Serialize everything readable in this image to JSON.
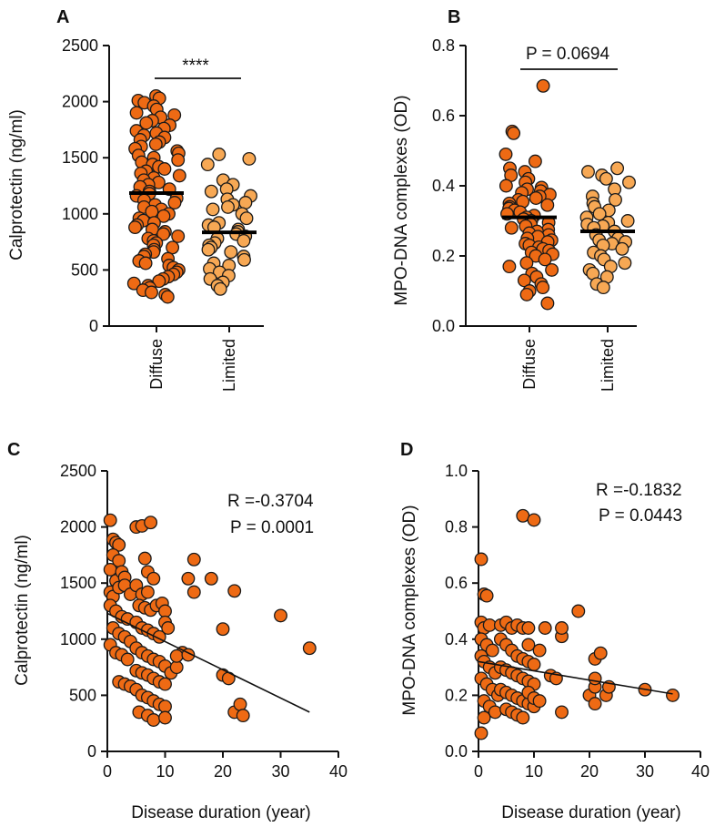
{
  "colors": {
    "diffuse": "#EE6A14",
    "limited": "#F7A854",
    "scatter": "#EE6A14",
    "line": "#111111"
  },
  "chart_data": [
    {
      "panel": "A",
      "type": "scatter",
      "ylabel": "Calprotectin (ng/ml)",
      "ylim": [
        0,
        2500
      ],
      "yticks": [
        0,
        500,
        1000,
        1500,
        2000,
        2500
      ],
      "yticks_text": [
        "0",
        "500",
        "1000",
        "1500",
        "2000",
        "2500"
      ],
      "categories": [
        "Diffuse",
        "Limited"
      ],
      "significance": "****",
      "series": [
        {
          "name": "Diffuse",
          "mean": 1185,
          "values": [
            2050,
            2030,
            2010,
            1990,
            1960,
            1930,
            1900,
            1880,
            1860,
            1830,
            1810,
            1790,
            1760,
            1740,
            1720,
            1700,
            1680,
            1660,
            1640,
            1620,
            1600,
            1580,
            1560,
            1540,
            1520,
            1500,
            1480,
            1460,
            1440,
            1420,
            1400,
            1380,
            1360,
            1340,
            1320,
            1300,
            1280,
            1260,
            1240,
            1220,
            1200,
            1180,
            1160,
            1140,
            1120,
            1100,
            1080,
            1060,
            1040,
            1020,
            1000,
            980,
            960,
            940,
            920,
            900,
            880,
            860,
            840,
            820,
            800,
            780,
            760,
            740,
            720,
            700,
            680,
            660,
            640,
            620,
            600,
            580,
            560,
            540,
            520,
            500,
            480,
            460,
            440,
            420,
            400,
            380,
            360,
            340,
            320,
            300,
            280,
            260
          ]
        },
        {
          "name": "Limited",
          "mean": 835,
          "values": [
            1530,
            1490,
            1440,
            1300,
            1260,
            1220,
            1200,
            1160,
            1130,
            1100,
            1080,
            1060,
            1040,
            1000,
            960,
            920,
            900,
            880,
            860,
            840,
            820,
            800,
            780,
            760,
            740,
            720,
            700,
            680,
            660,
            620,
            590,
            560,
            540,
            510,
            480,
            450,
            420,
            390,
            360,
            330
          ]
        }
      ]
    },
    {
      "panel": "B",
      "type": "scatter",
      "ylabel": "MPO-DNA complexes (OD)",
      "ylim": [
        0,
        0.8
      ],
      "yticks": [
        0,
        0.2,
        0.4,
        0.6,
        0.8
      ],
      "yticks_text": [
        "0.0",
        "0.2",
        "0.4",
        "0.6",
        "0.8"
      ],
      "categories": [
        "Diffuse",
        "Limited"
      ],
      "significance": "P = 0.0694",
      "series": [
        {
          "name": "Diffuse",
          "mean": 0.31,
          "values": [
            0.685,
            0.555,
            0.55,
            0.49,
            0.47,
            0.45,
            0.44,
            0.43,
            0.42,
            0.41,
            0.4,
            0.395,
            0.39,
            0.385,
            0.38,
            0.375,
            0.37,
            0.365,
            0.36,
            0.355,
            0.35,
            0.345,
            0.34,
            0.335,
            0.33,
            0.325,
            0.32,
            0.315,
            0.31,
            0.305,
            0.3,
            0.295,
            0.29,
            0.285,
            0.28,
            0.275,
            0.27,
            0.265,
            0.26,
            0.255,
            0.25,
            0.245,
            0.24,
            0.235,
            0.23,
            0.225,
            0.22,
            0.215,
            0.21,
            0.205,
            0.2,
            0.19,
            0.18,
            0.17,
            0.16,
            0.15,
            0.14,
            0.13,
            0.12,
            0.11,
            0.1,
            0.09,
            0.065
          ]
        },
        {
          "name": "Limited",
          "mean": 0.27,
          "values": [
            0.45,
            0.44,
            0.43,
            0.42,
            0.41,
            0.39,
            0.37,
            0.36,
            0.35,
            0.34,
            0.33,
            0.32,
            0.31,
            0.3,
            0.295,
            0.29,
            0.285,
            0.28,
            0.27,
            0.26,
            0.25,
            0.245,
            0.24,
            0.235,
            0.23,
            0.22,
            0.21,
            0.2,
            0.19,
            0.18,
            0.17,
            0.16,
            0.15,
            0.14,
            0.12,
            0.11
          ]
        }
      ]
    },
    {
      "panel": "C",
      "type": "scatter",
      "xlabel": "Disease duration (year)",
      "ylabel": "Calprotectin (ng/ml)",
      "xlim": [
        0,
        40
      ],
      "ylim": [
        0,
        2500
      ],
      "xticks": [
        0,
        10,
        20,
        30,
        40
      ],
      "xticks_text": [
        "0",
        "10",
        "20",
        "30",
        "40"
      ],
      "yticks": [
        0,
        500,
        1000,
        1500,
        2000,
        2500
      ],
      "yticks_text": [
        "0",
        "500",
        "1000",
        "1500",
        "2000",
        "2500"
      ],
      "stats": {
        "r": "R =-0.3704",
        "p": "P = 0.0001"
      },
      "fit": {
        "x": [
          0,
          35
        ],
        "y": [
          1230,
          350
        ]
      },
      "points": [
        [
          0.5,
          2060
        ],
        [
          1,
          1890
        ],
        [
          1.5,
          1860
        ],
        [
          2,
          1840
        ],
        [
          1,
          1750
        ],
        [
          2,
          1700
        ],
        [
          0.5,
          1620
        ],
        [
          1.5,
          1520
        ],
        [
          2.5,
          1600
        ],
        [
          3,
          1550
        ],
        [
          0.5,
          1420
        ],
        [
          1,
          1380
        ],
        [
          2,
          1460
        ],
        [
          3,
          1480
        ],
        [
          4,
          1400
        ],
        [
          0.5,
          1300
        ],
        [
          1.5,
          1250
        ],
        [
          2.5,
          1200
        ],
        [
          3.5,
          1180
        ],
        [
          1,
          1100
        ],
        [
          2,
          1050
        ],
        [
          3,
          1020
        ],
        [
          4,
          980
        ],
        [
          0.5,
          950
        ],
        [
          1.5,
          880
        ],
        [
          2.5,
          860
        ],
        [
          3.5,
          820
        ],
        [
          2,
          620
        ],
        [
          3,
          600
        ],
        [
          4,
          580
        ],
        [
          5,
          2000
        ],
        [
          6,
          2010
        ],
        [
          7.5,
          2040
        ],
        [
          6.5,
          1720
        ],
        [
          7,
          1600
        ],
        [
          8,
          1540
        ],
        [
          5,
          1480
        ],
        [
          6,
          1400
        ],
        [
          7,
          1420
        ],
        [
          5.5,
          1300
        ],
        [
          6.5,
          1280
        ],
        [
          7.5,
          1260
        ],
        [
          8.5,
          1300
        ],
        [
          9.5,
          1320
        ],
        [
          10,
          1250
        ],
        [
          5,
          1150
        ],
        [
          6,
          1100
        ],
        [
          7,
          1080
        ],
        [
          8,
          1050
        ],
        [
          9,
          1020
        ],
        [
          10,
          1150
        ],
        [
          10.5,
          1100
        ],
        [
          5,
          920
        ],
        [
          6,
          880
        ],
        [
          7,
          850
        ],
        [
          8,
          820
        ],
        [
          9,
          800
        ],
        [
          10,
          760
        ],
        [
          5,
          720
        ],
        [
          6,
          700
        ],
        [
          7,
          680
        ],
        [
          8,
          650
        ],
        [
          9,
          620
        ],
        [
          10,
          600
        ],
        [
          11,
          700
        ],
        [
          12,
          750
        ],
        [
          5,
          550
        ],
        [
          6,
          500
        ],
        [
          7,
          480
        ],
        [
          8,
          450
        ],
        [
          9,
          420
        ],
        [
          10,
          400
        ],
        [
          5.5,
          350
        ],
        [
          7,
          320
        ],
        [
          8,
          280
        ],
        [
          10,
          300
        ],
        [
          13,
          880
        ],
        [
          14,
          1540
        ],
        [
          15,
          1420
        ],
        [
          15,
          1710
        ],
        [
          18,
          1540
        ],
        [
          20,
          1090
        ],
        [
          22,
          1430
        ],
        [
          20,
          680
        ],
        [
          21,
          650
        ],
        [
          22,
          350
        ],
        [
          23,
          420
        ],
        [
          23.5,
          320
        ],
        [
          30,
          1210
        ],
        [
          35,
          920
        ],
        [
          12,
          850
        ],
        [
          14,
          860
        ]
      ]
    },
    {
      "panel": "D",
      "type": "scatter",
      "xlabel": "Disease duration (year)",
      "ylabel": "MPO-DNA complexes (OD)",
      "xlim": [
        0,
        40
      ],
      "ylim": [
        0,
        1.0
      ],
      "xticks": [
        0,
        10,
        20,
        30,
        40
      ],
      "xticks_text": [
        "0",
        "10",
        "20",
        "30",
        "40"
      ],
      "yticks": [
        0,
        0.2,
        0.4,
        0.6,
        0.8,
        1.0
      ],
      "yticks_text": [
        "0.0",
        "0.2",
        "0.4",
        "0.6",
        "0.8",
        "1.0"
      ],
      "stats": {
        "r": "R =-0.1832",
        "p": "P = 0.0443"
      },
      "fit": {
        "x": [
          0,
          35
        ],
        "y": [
          0.32,
          0.205
        ]
      },
      "points": [
        [
          0.5,
          0.685
        ],
        [
          1,
          0.56
        ],
        [
          1.5,
          0.555
        ],
        [
          0.5,
          0.46
        ],
        [
          1,
          0.44
        ],
        [
          2,
          0.45
        ],
        [
          0.5,
          0.4
        ],
        [
          1.5,
          0.38
        ],
        [
          2.5,
          0.36
        ],
        [
          0.5,
          0.34
        ],
        [
          1,
          0.32
        ],
        [
          2,
          0.3
        ],
        [
          3,
          0.28
        ],
        [
          0.5,
          0.26
        ],
        [
          1.5,
          0.24
        ],
        [
          2.5,
          0.22
        ],
        [
          3.5,
          0.2
        ],
        [
          1,
          0.18
        ],
        [
          2,
          0.16
        ],
        [
          3,
          0.14
        ],
        [
          1,
          0.12
        ],
        [
          0.5,
          0.065
        ],
        [
          4,
          0.45
        ],
        [
          5,
          0.46
        ],
        [
          6,
          0.44
        ],
        [
          7,
          0.45
        ],
        [
          8,
          0.44
        ],
        [
          4,
          0.4
        ],
        [
          5,
          0.38
        ],
        [
          6,
          0.36
        ],
        [
          7,
          0.34
        ],
        [
          8,
          0.33
        ],
        [
          9,
          0.32
        ],
        [
          10,
          0.31
        ],
        [
          4,
          0.3
        ],
        [
          5,
          0.29
        ],
        [
          6,
          0.28
        ],
        [
          7,
          0.27
        ],
        [
          8,
          0.26
        ],
        [
          9,
          0.25
        ],
        [
          10,
          0.24
        ],
        [
          4,
          0.22
        ],
        [
          5,
          0.21
        ],
        [
          6,
          0.2
        ],
        [
          7,
          0.19
        ],
        [
          8,
          0.18
        ],
        [
          9,
          0.17
        ],
        [
          10,
          0.16
        ],
        [
          5,
          0.15
        ],
        [
          6,
          0.14
        ],
        [
          7,
          0.13
        ],
        [
          8,
          0.12
        ],
        [
          9,
          0.21
        ],
        [
          10,
          0.19
        ],
        [
          11,
          0.18
        ],
        [
          8,
          0.84
        ],
        [
          10,
          0.825
        ],
        [
          9,
          0.44
        ],
        [
          9,
          0.38
        ],
        [
          11,
          0.36
        ],
        [
          12,
          0.44
        ],
        [
          13,
          0.27
        ],
        [
          14,
          0.26
        ],
        [
          15,
          0.41
        ],
        [
          15,
          0.44
        ],
        [
          15,
          0.14
        ],
        [
          18,
          0.5
        ],
        [
          20,
          0.2
        ],
        [
          21,
          0.17
        ],
        [
          21,
          0.23
        ],
        [
          21,
          0.26
        ],
        [
          21,
          0.33
        ],
        [
          22,
          0.35
        ],
        [
          23,
          0.2
        ],
        [
          23.5,
          0.23
        ],
        [
          30,
          0.22
        ],
        [
          35,
          0.2
        ]
      ]
    }
  ]
}
